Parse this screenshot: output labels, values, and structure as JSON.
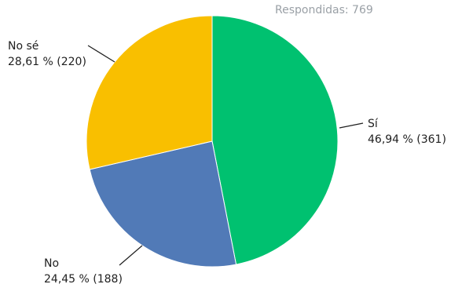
{
  "header": {
    "answered_text": "Respondidas: 769"
  },
  "chart_data": {
    "type": "pie",
    "slices": [
      {
        "label": "Sí",
        "percent_text": "46,94 %",
        "count": 361,
        "detail": "46,94 % (361)",
        "color": "#00c170"
      },
      {
        "label": "No",
        "percent_text": "24,45 %",
        "count": 188,
        "detail": "24,45 % (188)",
        "color": "#517ab7"
      },
      {
        "label": "No sé",
        "percent_text": "28,61 %",
        "count": 220,
        "detail": "28,61 % (220)",
        "color": "#f9bf00"
      }
    ],
    "total": 769,
    "legend": "none"
  }
}
